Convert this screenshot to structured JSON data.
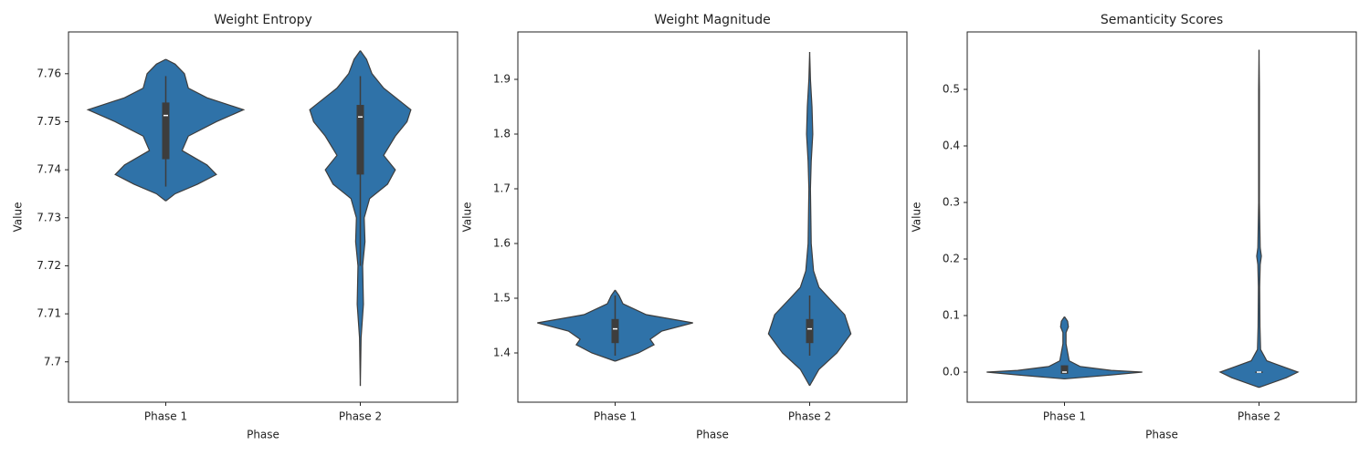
{
  "chart_data": [
    {
      "type": "violin",
      "title": "Weight Entropy",
      "x_label": "Phase",
      "y_label": "Value",
      "categories": [
        "Phase 1",
        "Phase 2"
      ],
      "color": "#2f72a8",
      "box_color": "#3d3d3d",
      "ylim": [
        7.6916,
        7.7687
      ],
      "yticks": [
        7.7,
        7.71,
        7.72,
        7.73,
        7.74,
        7.75,
        7.76
      ],
      "violins": [
        {
          "y": [
            7.763,
            7.762,
            7.76,
            7.757,
            7.755,
            7.7525,
            7.75,
            7.747,
            7.744,
            7.741,
            7.739,
            7.737,
            7.735,
            7.7335
          ],
          "density": [
            0,
            0.12,
            0.24,
            0.29,
            0.53,
            1.0,
            0.65,
            0.29,
            0.21,
            0.53,
            0.65,
            0.41,
            0.12,
            0
          ],
          "q1": 7.7422,
          "median": 7.7513,
          "q3": 7.754,
          "whisker_low": 7.7365,
          "whisker_high": 7.7595
        },
        {
          "y": [
            7.7648,
            7.763,
            7.76,
            7.757,
            7.7525,
            7.75,
            7.747,
            7.743,
            7.74,
            7.737,
            7.734,
            7.73,
            7.725,
            7.72,
            7.712,
            7.705,
            7.695
          ],
          "density": [
            0,
            0.08,
            0.15,
            0.3,
            0.65,
            0.6,
            0.45,
            0.3,
            0.45,
            0.35,
            0.12,
            0.05,
            0.06,
            0.03,
            0.04,
            0.01,
            0
          ],
          "q1": 7.739,
          "median": 7.751,
          "q3": 7.7535,
          "whisker_low": 7.72,
          "whisker_high": 7.7595
        }
      ]
    },
    {
      "type": "violin",
      "title": "Weight Magnitude",
      "x_label": "Phase",
      "y_label": "Value",
      "categories": [
        "Phase 1",
        "Phase 2"
      ],
      "color": "#2f72a8",
      "box_color": "#3d3d3d",
      "ylim": [
        1.31,
        1.9867
      ],
      "yticks": [
        1.4,
        1.5,
        1.6,
        1.7,
        1.8,
        1.9
      ],
      "violins": [
        {
          "y": [
            1.515,
            1.505,
            1.49,
            1.47,
            1.455,
            1.44,
            1.425,
            1.415,
            1.4,
            1.385
          ],
          "density": [
            0,
            0.05,
            0.1,
            0.4,
            1.0,
            0.6,
            0.45,
            0.5,
            0.3,
            0
          ],
          "q1": 1.418,
          "median": 1.444,
          "q3": 1.462,
          "whisker_low": 1.395,
          "whisker_high": 1.505
        },
        {
          "y": [
            1.95,
            1.9,
            1.85,
            1.8,
            1.75,
            1.7,
            1.6,
            1.55,
            1.52,
            1.5,
            1.47,
            1.435,
            1.4,
            1.37,
            1.34
          ],
          "density": [
            0,
            0.01,
            0.03,
            0.04,
            0.02,
            0.01,
            0.02,
            0.05,
            0.12,
            0.25,
            0.45,
            0.53,
            0.35,
            0.12,
            0
          ],
          "q1": 1.418,
          "median": 1.444,
          "q3": 1.462,
          "whisker_low": 1.395,
          "whisker_high": 1.505
        }
      ]
    },
    {
      "type": "violin",
      "title": "Semanticity Scores",
      "x_label": "Phase",
      "y_label": "Value",
      "categories": [
        "Phase 1",
        "Phase 2"
      ],
      "color": "#2f72a8",
      "box_color": "#3d3d3d",
      "ylim": [
        -0.0532,
        0.6016
      ],
      "yticks": [
        {
          "value": 0,
          "label": "0.0"
        },
        0.1,
        0.2,
        0.3,
        0.4,
        0.5
      ],
      "violins": [
        {
          "y": [
            0.098,
            0.09,
            0.08,
            0.07,
            0.05,
            0.02,
            0.01,
            0.003,
            0.0,
            -0.005,
            -0.012
          ],
          "density": [
            0,
            0.04,
            0.05,
            0.02,
            0.02,
            0.06,
            0.2,
            0.6,
            1.0,
            0.6,
            0
          ],
          "q1": -0.003,
          "median": 0.0,
          "q3": 0.012,
          "whisker_low": -0.003,
          "whisker_high": 0.012
        },
        {
          "y": [
            0.57,
            0.5,
            0.3,
            0.22,
            0.205,
            0.19,
            0.15,
            0.08,
            0.04,
            0.02,
            0.01,
            0.0,
            -0.01,
            -0.027
          ],
          "density": [
            0,
            0.005,
            0.005,
            0.015,
            0.03,
            0.015,
            0.008,
            0.012,
            0.02,
            0.1,
            0.3,
            0.5,
            0.35,
            0
          ],
          "q1": -0.001,
          "median": 0.0,
          "q3": 0.001,
          "whisker_low": -0.001,
          "whisker_high": 0.001
        }
      ]
    }
  ]
}
